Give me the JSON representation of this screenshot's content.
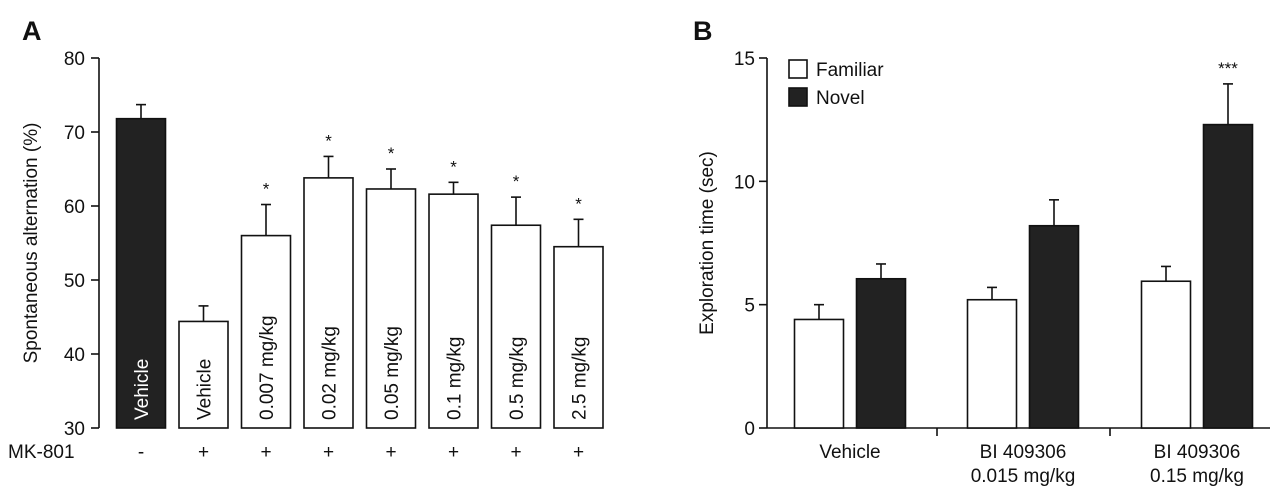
{
  "chart_data": [
    {
      "panel": "A",
      "type": "bar",
      "ylabel": "Spontaneous alternation (%)",
      "ylim": [
        30,
        80
      ],
      "yticks": [
        30,
        40,
        50,
        60,
        70,
        80
      ],
      "row_label": "MK-801",
      "categories": [
        "Vehicle",
        "Vehicle",
        "0.007 mg/kg",
        "0.02 mg/kg",
        "0.05 mg/kg",
        "0.1 mg/kg",
        "0.5 mg/kg",
        "2.5 mg/kg"
      ],
      "mk801": [
        "-",
        "+",
        "+",
        "+",
        "+",
        "+",
        "+",
        "+"
      ],
      "values": [
        71.8,
        44.4,
        56.0,
        63.8,
        62.3,
        61.6,
        57.4,
        54.5
      ],
      "errors": [
        1.9,
        2.1,
        4.2,
        2.9,
        2.7,
        1.6,
        3.8,
        3.7
      ],
      "fills": [
        "black",
        "white",
        "white",
        "white",
        "white",
        "white",
        "white",
        "white"
      ],
      "significance": [
        "",
        "",
        "*",
        "*",
        "*",
        "*",
        "*",
        "*"
      ]
    },
    {
      "panel": "B",
      "type": "bar",
      "ylabel": "Exploration time (sec)",
      "ylim": [
        0,
        15
      ],
      "yticks": [
        0,
        5,
        10,
        15
      ],
      "categories": [
        [
          "Vehicle"
        ],
        [
          "BI 409306",
          "0.015 mg/kg"
        ],
        [
          "BI 409306",
          "0.15 mg/kg"
        ]
      ],
      "legend": [
        {
          "name": "Familiar",
          "color": "#ffffff"
        },
        {
          "name": "Novel",
          "color": "#222222"
        }
      ],
      "legend_position": "top-left",
      "series": [
        {
          "name": "Familiar",
          "values": [
            4.4,
            5.2,
            5.95
          ],
          "errors": [
            0.6,
            0.5,
            0.6
          ]
        },
        {
          "name": "Novel",
          "values": [
            6.05,
            8.2,
            12.3
          ],
          "errors": [
            0.6,
            1.05,
            1.65
          ]
        }
      ],
      "significance": [
        "",
        "",
        "***"
      ]
    }
  ]
}
